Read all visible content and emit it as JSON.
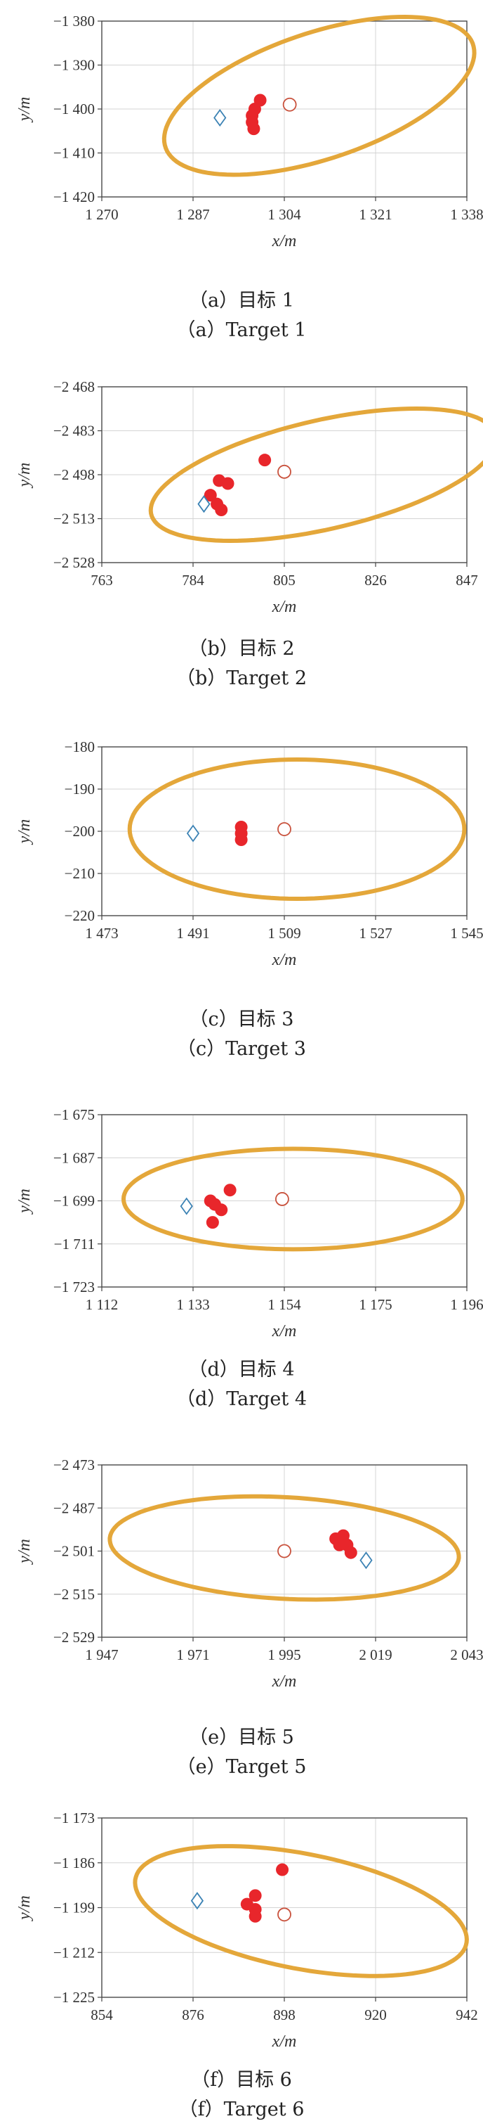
{
  "colors": {
    "ellipse": "#E4A73A",
    "measured_point": "#E8262B",
    "reference_circle": "#C9523D",
    "reference_diamond": "#3B82B4"
  },
  "chart_data": [
    {
      "type": "scatter",
      "xlabel": "x/m",
      "ylabel": "y/m",
      "xlim": [
        1270,
        1338
      ],
      "ylim": [
        -1420,
        -1380
      ],
      "xticks": [
        "1 270",
        "1 287",
        "1 304",
        "1 321",
        "1 338"
      ],
      "yticks": [
        "−1 380",
        "−1 390",
        "−1 400",
        "−1 410",
        "−1 420"
      ],
      "xtick_values": [
        1270,
        1287,
        1304,
        1321,
        1338
      ],
      "ytick_values": [
        -1380,
        -1390,
        -1400,
        -1410,
        -1420
      ],
      "points": [
        [
          1299.5,
          -1398
        ],
        [
          1298.5,
          -1400
        ],
        [
          1298,
          -1401.5
        ],
        [
          1298,
          -1403
        ],
        [
          1298.3,
          -1404.5
        ]
      ],
      "circle": [
        1305,
        -1399
      ],
      "diamond": [
        1292,
        -1402
      ],
      "ellipse": {
        "cx": 1310.5,
        "cy": -1397,
        "rx": 31,
        "ry": 14,
        "angle_deg": 24
      },
      "caption_cn": "（a）目标 1",
      "caption_en": "（a）Target 1"
    },
    {
      "type": "scatter",
      "xlabel": "x/m",
      "ylabel": "y/m",
      "xlim": [
        763,
        847
      ],
      "ylim": [
        -2528,
        -2468
      ],
      "xticks": [
        "763",
        "784",
        "805",
        "826",
        "847"
      ],
      "yticks": [
        "−2 468",
        "−2 483",
        "−2 498",
        "−2 513",
        "−2 528"
      ],
      "xtick_values": [
        763,
        784,
        805,
        826,
        847
      ],
      "ytick_values": [
        -2468,
        -2483,
        -2498,
        -2513,
        -2528
      ],
      "points": [
        [
          788,
          -2505
        ],
        [
          790,
          -2500
        ],
        [
          792,
          -2501
        ],
        [
          789.5,
          -2508
        ],
        [
          790.5,
          -2510
        ],
        [
          800.5,
          -2493
        ]
      ],
      "circle": [
        805,
        -2497
      ],
      "diamond": [
        786.5,
        -2508
      ],
      "ellipse": {
        "cx": 814,
        "cy": -2498,
        "rx": 42,
        "ry": 18,
        "angle_deg": 21
      },
      "caption_cn": "（b）目标 2",
      "caption_en": "（b）Target 2"
    },
    {
      "type": "scatter",
      "xlabel": "x/m",
      "ylabel": "y/m",
      "xlim": [
        1473,
        1545
      ],
      "ylim": [
        -220,
        -180
      ],
      "xticks": [
        "1 473",
        "1 491",
        "1 509",
        "1 527",
        "1 545"
      ],
      "yticks": [
        "−180",
        "−190",
        "−200",
        "−210",
        "−220"
      ],
      "xtick_values": [
        1473,
        1491,
        1509,
        1527,
        1545
      ],
      "ytick_values": [
        -180,
        -190,
        -200,
        -210,
        -220
      ],
      "points": [
        [
          1500.5,
          -199
        ],
        [
          1500.5,
          -200.5
        ],
        [
          1500.5,
          -202
        ]
      ],
      "circle": [
        1509,
        -199.5
      ],
      "diamond": [
        1491,
        -200.5
      ],
      "ellipse": {
        "cx": 1511.5,
        "cy": -199.5,
        "rx": 33,
        "ry": 16.5,
        "angle_deg": 0
      },
      "caption_cn": "（c）目标 3",
      "caption_en": "（c）Target 3"
    },
    {
      "type": "scatter",
      "xlabel": "x/m",
      "ylabel": "y/m",
      "xlim": [
        1112,
        1196
      ],
      "ylim": [
        -1723,
        -1675
      ],
      "xticks": [
        "1 112",
        "1 133",
        "1 154",
        "1 175",
        "1 196"
      ],
      "yticks": [
        "−1 675",
        "−1 687",
        "−1 699",
        "−1 711",
        "−1 723"
      ],
      "xtick_values": [
        1112,
        1133,
        1154,
        1175,
        1196
      ],
      "ytick_values": [
        -1675,
        -1687,
        -1699,
        -1711,
        -1723
      ],
      "points": [
        [
          1141.5,
          -1696
        ],
        [
          1137,
          -1699
        ],
        [
          1138,
          -1700
        ],
        [
          1139.5,
          -1701.5
        ],
        [
          1137.5,
          -1705
        ]
      ],
      "circle": [
        1153.5,
        -1698.5
      ],
      "diamond": [
        1131.5,
        -1700.5
      ],
      "ellipse": {
        "cx": 1156,
        "cy": -1698.5,
        "rx": 39,
        "ry": 14,
        "angle_deg": 0
      },
      "caption_cn": "（d）目标 4",
      "caption_en": "（d）Target 4"
    },
    {
      "type": "scatter",
      "xlabel": "x/m",
      "ylabel": "y/m",
      "xlim": [
        1947,
        2043
      ],
      "ylim": [
        -2529,
        -2473
      ],
      "xticks": [
        "1 947",
        "1 971",
        "1 995",
        "2 019",
        "2 043"
      ],
      "yticks": [
        "−2 473",
        "−2 487",
        "−2 501",
        "−2 515",
        "−2 529"
      ],
      "xtick_values": [
        1947,
        1971,
        1995,
        2019,
        2043
      ],
      "ytick_values": [
        -2473,
        -2487,
        -2501,
        -2515,
        -2529
      ],
      "points": [
        [
          2008.5,
          -2497
        ],
        [
          2010.5,
          -2496
        ],
        [
          2009.5,
          -2499
        ],
        [
          2011.5,
          -2499
        ],
        [
          2012.5,
          -2501.5
        ]
      ],
      "circle": [
        1995,
        -2501
      ],
      "diamond": [
        2016.5,
        -2504
      ],
      "ellipse": {
        "cx": 1995,
        "cy": -2500,
        "rx": 46,
        "ry": 16.5,
        "angle_deg": -4
      },
      "caption_cn": "（e）目标 5",
      "caption_en": "（e）Target 5"
    },
    {
      "type": "scatter",
      "xlabel": "x/m",
      "ylabel": "y/m",
      "xlim": [
        854,
        942
      ],
      "ylim": [
        -1225,
        -1173
      ],
      "xticks": [
        "854",
        "876",
        "898",
        "920",
        "942"
      ],
      "yticks": [
        "−1 173",
        "−1 186",
        "−1 199",
        "−1 212",
        "−1 225"
      ],
      "xtick_values": [
        854,
        876,
        898,
        920,
        942
      ],
      "ytick_values": [
        -1173,
        -1186,
        -1199,
        -1212,
        -1225
      ],
      "points": [
        [
          897.5,
          -1188
        ],
        [
          891,
          -1195.5
        ],
        [
          889,
          -1198
        ],
        [
          891,
          -1199.5
        ],
        [
          891,
          -1201.5
        ]
      ],
      "circle": [
        898,
        -1201
      ],
      "diamond": [
        877,
        -1197
      ],
      "ellipse": {
        "cx": 902,
        "cy": -1200,
        "rx": 41,
        "ry": 16.5,
        "angle_deg": -14
      },
      "caption_cn": "（f）目标 6",
      "caption_en": "（f）Target 6"
    }
  ]
}
